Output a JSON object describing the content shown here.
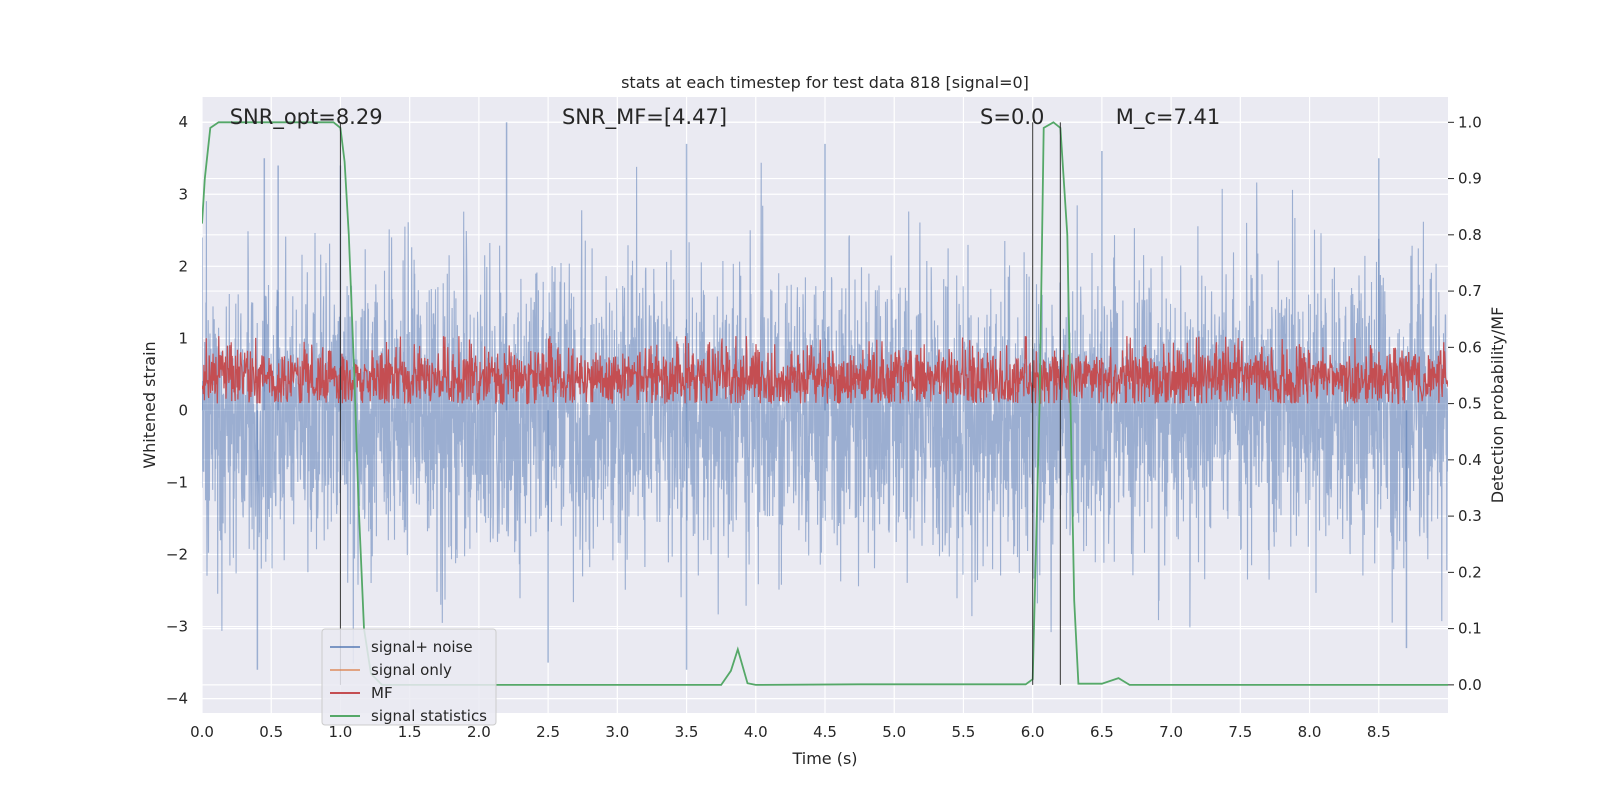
{
  "chart_data": {
    "type": "line",
    "title": "stats at each timestep for test data 818 [signal=0]",
    "xlabel": "Time (s)",
    "ylabel": "Whitened strain",
    "ylabel_right": "Detection probability/MF",
    "xlim": [
      0.0,
      9.0
    ],
    "ylim": [
      -4.2,
      4.35
    ],
    "ylim_right": [
      -0.05,
      1.045
    ],
    "xticks": [
      0.0,
      0.5,
      1.0,
      1.5,
      2.0,
      2.5,
      3.0,
      3.5,
      4.0,
      4.5,
      5.0,
      5.5,
      6.0,
      6.5,
      7.0,
      7.5,
      8.0,
      8.5
    ],
    "xtick_labels": [
      "0.0",
      "0.5",
      "1.0",
      "1.5",
      "2.0",
      "2.5",
      "3.0",
      "3.5",
      "4.0",
      "4.5",
      "5.0",
      "5.5",
      "6.0",
      "6.5",
      "7.0",
      "7.5",
      "8.0",
      "8.5"
    ],
    "yticks": [
      4,
      3,
      2,
      1,
      0,
      -1,
      -2,
      -3,
      -4
    ],
    "ytick_labels": [
      "4",
      "3",
      "2",
      "1",
      "0",
      "−1",
      "−2",
      "−3",
      "−4"
    ],
    "yticks_right": [
      1.0,
      0.9,
      0.8,
      0.7,
      0.6,
      0.5,
      0.4,
      0.3,
      0.2,
      0.1,
      0.0
    ],
    "ytick_labels_right": [
      "1.0",
      "0.9",
      "0.8",
      "0.7",
      "0.6",
      "0.5",
      "0.4",
      "0.3",
      "0.2",
      "0.1",
      "0.0"
    ],
    "grid": true,
    "legend_position": "bottom-left",
    "annotations": [
      {
        "text": "SNR_opt=8.29",
        "x": 0.2
      },
      {
        "text": "SNR_MF=[4.47]",
        "x": 2.6
      },
      {
        "text": "S=0.0",
        "x": 5.62
      },
      {
        "text": "M_c=7.41",
        "x": 6.6
      }
    ],
    "vertical_lines": [
      1.0,
      6.0,
      6.2
    ],
    "series": [
      {
        "name": "signal+ noise",
        "axis": "left",
        "color": "#4c72b0",
        "style": "noise-band",
        "values": [
          {
            "x": 0.0,
            "y": 2.4
          },
          {
            "x": 0.45,
            "y": 3.5
          },
          {
            "x": 0.55,
            "y": 3.4
          },
          {
            "x": 1.0,
            "y": 3.4
          },
          {
            "x": 2.2,
            "y": 4.0
          },
          {
            "x": 3.5,
            "y": 3.7
          },
          {
            "x": 4.5,
            "y": 3.7
          },
          {
            "x": 6.5,
            "y": 3.6
          },
          {
            "x": 8.5,
            "y": 3.5
          },
          {
            "x": 0.4,
            "y": -3.6
          },
          {
            "x": 2.5,
            "y": -3.5
          },
          {
            "x": 3.5,
            "y": -3.6
          },
          {
            "x": 8.7,
            "y": -3.3
          }
        ]
      },
      {
        "name": "signal only",
        "axis": "left",
        "color": "#dd8452",
        "values": []
      },
      {
        "name": "MF",
        "axis": "right",
        "color": "#c44e52",
        "style": "noise-band",
        "values": [
          {
            "x": 0.0,
            "y": 0.54
          },
          {
            "x": 1.0,
            "y": 0.55
          },
          {
            "x": 2.0,
            "y": 0.56
          },
          {
            "x": 3.8,
            "y": 0.61
          },
          {
            "x": 4.5,
            "y": 0.58
          },
          {
            "x": 5.5,
            "y": 0.55
          },
          {
            "x": 6.5,
            "y": 0.56
          },
          {
            "x": 8.5,
            "y": 0.56
          },
          {
            "x": 9.0,
            "y": 0.55
          }
        ]
      },
      {
        "name": "signal statistics",
        "axis": "right",
        "color": "#55a868",
        "values": [
          {
            "x": 0.0,
            "y": 0.82
          },
          {
            "x": 0.02,
            "y": 0.9
          },
          {
            "x": 0.06,
            "y": 0.99
          },
          {
            "x": 0.12,
            "y": 1.0
          },
          {
            "x": 0.95,
            "y": 1.0
          },
          {
            "x": 1.0,
            "y": 0.99
          },
          {
            "x": 1.03,
            "y": 0.93
          },
          {
            "x": 1.06,
            "y": 0.8
          },
          {
            "x": 1.1,
            "y": 0.55
          },
          {
            "x": 1.13,
            "y": 0.33
          },
          {
            "x": 1.17,
            "y": 0.1
          },
          {
            "x": 1.22,
            "y": 0.02
          },
          {
            "x": 1.3,
            "y": 0.0
          },
          {
            "x": 3.75,
            "y": 0.0
          },
          {
            "x": 3.82,
            "y": 0.025
          },
          {
            "x": 3.87,
            "y": 0.063
          },
          {
            "x": 3.94,
            "y": 0.003
          },
          {
            "x": 4.0,
            "y": 0.0
          },
          {
            "x": 4.75,
            "y": 0.001
          },
          {
            "x": 5.95,
            "y": 0.001
          },
          {
            "x": 6.0,
            "y": 0.01
          },
          {
            "x": 6.05,
            "y": 0.5
          },
          {
            "x": 6.08,
            "y": 0.99
          },
          {
            "x": 6.15,
            "y": 1.0
          },
          {
            "x": 6.2,
            "y": 0.99
          },
          {
            "x": 6.25,
            "y": 0.8
          },
          {
            "x": 6.3,
            "y": 0.15
          },
          {
            "x": 6.33,
            "y": 0.002
          },
          {
            "x": 6.5,
            "y": 0.002
          },
          {
            "x": 6.62,
            "y": 0.012
          },
          {
            "x": 6.7,
            "y": 0.0
          },
          {
            "x": 9.0,
            "y": 0.0
          }
        ]
      }
    ]
  }
}
